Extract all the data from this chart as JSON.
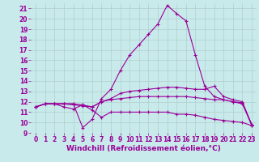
{
  "xlabel": "Windchill (Refroidissement éolien,°C)",
  "bg_color": "#c8eaea",
  "line_color": "#990099",
  "xlim": [
    -0.5,
    23.5
  ],
  "ylim": [
    9,
    21.5
  ],
  "yticks": [
    9,
    10,
    11,
    12,
    13,
    14,
    15,
    16,
    17,
    18,
    19,
    20,
    21
  ],
  "xticks": [
    0,
    1,
    2,
    3,
    4,
    5,
    6,
    7,
    8,
    9,
    10,
    11,
    12,
    13,
    14,
    15,
    16,
    17,
    18,
    19,
    20,
    21,
    22,
    23
  ],
  "lines": [
    {
      "x": [
        0,
        1,
        2,
        3,
        4,
        5,
        6,
        7,
        8,
        9,
        10,
        11,
        12,
        13,
        14,
        15,
        16,
        17,
        18,
        19,
        20,
        21,
        22,
        23
      ],
      "y": [
        11.5,
        11.8,
        11.8,
        11.8,
        11.8,
        9.5,
        10.3,
        12.3,
        13.2,
        15.0,
        16.5,
        17.5,
        18.5,
        19.5,
        21.3,
        20.5,
        19.8,
        16.5,
        13.5,
        12.5,
        12.2,
        12.0,
        11.8,
        9.8
      ]
    },
    {
      "x": [
        0,
        1,
        2,
        3,
        4,
        5,
        6,
        7,
        8,
        9,
        10,
        11,
        12,
        13,
        14,
        15,
        16,
        17,
        18,
        19,
        20,
        21,
        22,
        23
      ],
      "y": [
        11.5,
        11.8,
        11.8,
        11.8,
        11.8,
        11.7,
        11.5,
        12.0,
        12.3,
        12.8,
        13.0,
        13.1,
        13.2,
        13.3,
        13.4,
        13.4,
        13.3,
        13.2,
        13.2,
        13.5,
        12.5,
        12.2,
        12.0,
        9.8
      ]
    },
    {
      "x": [
        0,
        1,
        2,
        3,
        4,
        5,
        6,
        7,
        8,
        9,
        10,
        11,
        12,
        13,
        14,
        15,
        16,
        17,
        18,
        19,
        20,
        21,
        22,
        23
      ],
      "y": [
        11.5,
        11.8,
        11.8,
        11.8,
        11.7,
        11.6,
        11.5,
        12.0,
        12.2,
        12.3,
        12.4,
        12.5,
        12.5,
        12.5,
        12.5,
        12.5,
        12.5,
        12.4,
        12.3,
        12.2,
        12.2,
        12.0,
        11.9,
        9.7
      ]
    },
    {
      "x": [
        0,
        1,
        2,
        3,
        4,
        5,
        6,
        7,
        8,
        9,
        10,
        11,
        12,
        13,
        14,
        15,
        16,
        17,
        18,
        19,
        20,
        21,
        22,
        23
      ],
      "y": [
        11.5,
        11.8,
        11.8,
        11.5,
        11.3,
        11.7,
        11.2,
        10.5,
        11.0,
        11.0,
        11.0,
        11.0,
        11.0,
        11.0,
        11.0,
        10.8,
        10.8,
        10.7,
        10.5,
        10.3,
        10.2,
        10.1,
        10.0,
        9.7
      ]
    }
  ],
  "marker": "+",
  "markersize": 3,
  "linewidth": 0.8,
  "xlabel_fontsize": 6.5,
  "tick_fontsize": 5.5,
  "grid_color": "#b0d0d0",
  "grid_linewidth": 0.5
}
